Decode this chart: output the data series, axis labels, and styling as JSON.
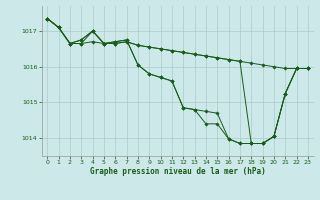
{
  "xlabel": "Graphe pression niveau de la mer (hPa)",
  "background_color": "#cce8e8",
  "grid_color": "#aacccc",
  "line_color": "#1a5c1a",
  "text_color": "#1a5c1a",
  "ylim": [
    1013.5,
    1017.7
  ],
  "xlim": [
    -0.5,
    23.5
  ],
  "yticks": [
    1014,
    1015,
    1016,
    1017
  ],
  "xticks": [
    0,
    1,
    2,
    3,
    4,
    5,
    6,
    7,
    8,
    9,
    10,
    11,
    12,
    13,
    14,
    15,
    16,
    17,
    18,
    19,
    20,
    21,
    22,
    23
  ],
  "series": [
    [
      1017.35,
      1017.1,
      1016.65,
      1016.65,
      1017.0,
      1016.65,
      1016.65,
      1016.7,
      1016.6,
      1016.55,
      1016.5,
      1016.45,
      1016.4,
      1016.35,
      1016.3,
      1016.25,
      1016.2,
      1016.15,
      1016.1,
      1016.05,
      1016.0,
      1015.95,
      1015.95,
      1015.95
    ],
    [
      1017.35,
      1017.1,
      1016.65,
      1016.65,
      1016.7,
      1016.65,
      1016.65,
      1016.7,
      1016.6,
      1016.55,
      1016.5,
      1016.45,
      1016.4,
      1016.35,
      1016.3,
      1016.25,
      1016.2,
      1016.15,
      1013.85,
      1013.85,
      1014.05,
      1015.25,
      1015.95,
      1015.95
    ],
    [
      1017.35,
      1017.1,
      1016.65,
      1016.75,
      1017.0,
      1016.65,
      1016.7,
      1016.75,
      1016.05,
      1015.8,
      1015.7,
      1015.6,
      1014.85,
      1014.8,
      1014.75,
      1014.7,
      1013.98,
      1013.85,
      1013.85,
      1013.85,
      1014.05,
      1015.25,
      1015.95,
      1015.95
    ],
    [
      1017.35,
      1017.1,
      1016.65,
      1016.75,
      1017.0,
      1016.65,
      1016.7,
      1016.75,
      1016.05,
      1015.8,
      1015.7,
      1015.6,
      1014.85,
      1014.8,
      1014.4,
      1014.4,
      1013.98,
      1013.85,
      1013.85,
      1013.85,
      1014.05,
      1015.25,
      1015.95,
      1015.95
    ]
  ]
}
